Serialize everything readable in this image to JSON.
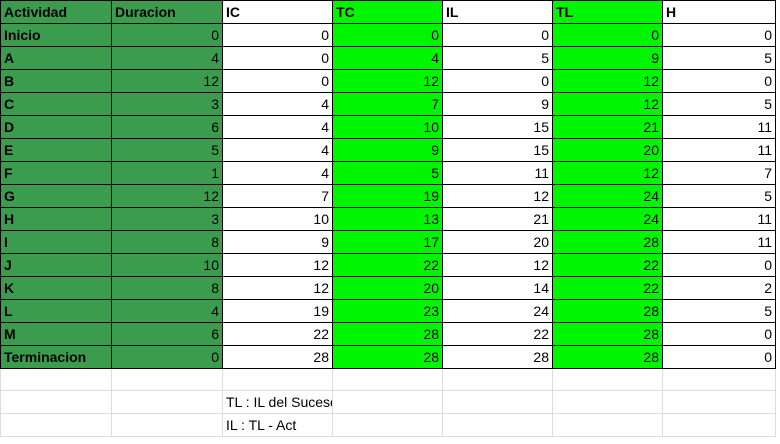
{
  "colors": {
    "dark_green": "#3c9c4e",
    "bright_green": "#00f600",
    "grid_line": "#000000",
    "light_grid_line": "#dcdcdc"
  },
  "header": [
    "Actividad",
    "Duracion",
    "IC",
    "TC",
    "IL",
    "TL",
    "H"
  ],
  "rows": [
    [
      "Inicio",
      "0",
      "0",
      "0",
      "0",
      "0",
      "0"
    ],
    [
      "A",
      "4",
      "0",
      "4",
      "5",
      "9",
      "5"
    ],
    [
      "B",
      "12",
      "0",
      "12",
      "0",
      "12",
      "0"
    ],
    [
      "C",
      "3",
      "4",
      "7",
      "9",
      "12",
      "5"
    ],
    [
      "D",
      "6",
      "4",
      "10",
      "15",
      "21",
      "11"
    ],
    [
      "E",
      "5",
      "4",
      "9",
      "15",
      "20",
      "11"
    ],
    [
      "F",
      "1",
      "4",
      "5",
      "11",
      "12",
      "7"
    ],
    [
      "G",
      "12",
      "7",
      "19",
      "12",
      "24",
      "5"
    ],
    [
      "H",
      "3",
      "10",
      "13",
      "21",
      "24",
      "11"
    ],
    [
      "I",
      "8",
      "9",
      "17",
      "20",
      "28",
      "11"
    ],
    [
      "J",
      "10",
      "12",
      "22",
      "12",
      "22",
      "0"
    ],
    [
      "K",
      "8",
      "12",
      "20",
      "14",
      "22",
      "2"
    ],
    [
      "L",
      "4",
      "19",
      "23",
      "24",
      "28",
      "5"
    ],
    [
      "M",
      "6",
      "22",
      "28",
      "22",
      "28",
      "0"
    ],
    [
      "Terminacion",
      "0",
      "28",
      "28",
      "28",
      "28",
      "0"
    ]
  ],
  "notes": [
    "TL : IL del Sucesor",
    "IL : TL - Act"
  ]
}
